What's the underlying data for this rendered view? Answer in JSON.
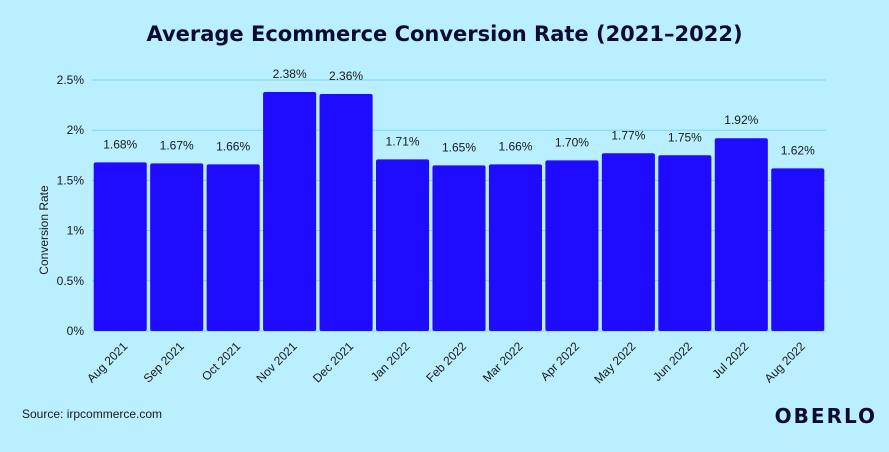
{
  "chart_data": {
    "type": "bar",
    "title": "Average Ecommerce Conversion Rate (2021–2022)",
    "ylabel": "Conversion Rate",
    "xlabel": "",
    "categories": [
      "Aug 2021",
      "Sep 2021",
      "Oct 2021",
      "Nov 2021",
      "Dec 2021",
      "Jan 2022",
      "Feb 2022",
      "Mar 2022",
      "Apr 2022",
      "May 2022",
      "Jun 2022",
      "Jul 2022",
      "Aug 2022"
    ],
    "values": [
      1.68,
      1.67,
      1.66,
      2.38,
      2.36,
      1.71,
      1.65,
      1.66,
      1.7,
      1.77,
      1.75,
      1.92,
      1.62
    ],
    "data_labels": [
      "1.68%",
      "1.67%",
      "1.66%",
      "2.38%",
      "2.36%",
      "1.71%",
      "1.65%",
      "1.66%",
      "1.70%",
      "1.77%",
      "1.75%",
      "1.92%",
      "1.62%"
    ],
    "yticks": [
      0,
      0.5,
      1,
      1.5,
      2,
      2.5
    ],
    "ytick_labels": [
      "0%",
      "0.5%",
      "1%",
      "1.5%",
      "2%",
      "2.5%"
    ],
    "ylim": [
      0,
      2.5
    ],
    "grid": true,
    "legend": "none",
    "bar_color": "#1f0cff",
    "grid_color": "#7fd6f0"
  },
  "footer": {
    "source": "Source: irpcommerce.com",
    "brand": "OBERLO"
  }
}
